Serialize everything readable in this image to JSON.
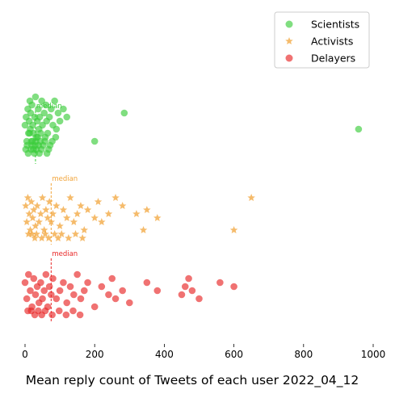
{
  "chart_data": {
    "type": "scatter",
    "xlabel": "Mean reply count of Tweets of each user 2022_04_12",
    "ylabel": "",
    "xlim": [
      0,
      1000
    ],
    "x_ticks": [
      "0",
      "200",
      "400",
      "600",
      "800",
      "1000"
    ],
    "y_ticks": [],
    "grid": false,
    "legend_position": "top-right",
    "series": [
      {
        "name": "Scientists",
        "marker": "circle",
        "color": "#3ccc3c",
        "median": 30,
        "median_label": "median",
        "x": [
          0,
          3,
          5,
          8,
          10,
          12,
          14,
          15,
          16,
          18,
          20,
          22,
          25,
          28,
          30,
          32,
          35,
          38,
          40,
          42,
          45,
          48,
          50,
          55,
          58,
          60,
          62,
          65,
          70,
          75,
          80,
          85,
          90,
          95,
          100,
          110,
          120,
          200,
          285,
          958,
          2,
          6,
          9,
          13,
          17,
          19,
          21,
          24,
          27,
          29,
          31,
          33,
          36,
          39,
          41,
          44,
          47,
          52,
          57,
          63,
          68,
          72,
          78,
          88
        ],
        "y": [
          2.4,
          2.5,
          2.2,
          2.6,
          2.3,
          2.45,
          2.7,
          2.35,
          2.55,
          2.2,
          2.65,
          2.4,
          2.3,
          2.5,
          2.75,
          2.25,
          2.45,
          2.6,
          2.35,
          2.5,
          2.3,
          2.7,
          2.4,
          2.55,
          2.25,
          2.65,
          2.45,
          2.3,
          2.5,
          2.6,
          2.4,
          2.7,
          2.35,
          2.55,
          2.45,
          2.6,
          2.5,
          2.2,
          2.55,
          2.35,
          2.1,
          2.15,
          2.05,
          2.3,
          2.1,
          2.15,
          2.2,
          2.1,
          2.05,
          2.15,
          2.2,
          2.1,
          2.25,
          2.15,
          2.05,
          2.2,
          2.1,
          2.15,
          2.2,
          2.05,
          2.1,
          2.15,
          2.2,
          2.25
        ]
      },
      {
        "name": "Activists",
        "marker": "star",
        "color": "#f2a43a",
        "median": 75,
        "median_label": "median",
        "x": [
          2,
          5,
          8,
          12,
          15,
          18,
          22,
          25,
          30,
          35,
          40,
          45,
          50,
          55,
          60,
          65,
          70,
          75,
          80,
          90,
          100,
          110,
          120,
          130,
          140,
          150,
          160,
          170,
          180,
          200,
          210,
          220,
          240,
          260,
          280,
          320,
          340,
          350,
          380,
          600,
          650,
          10,
          20,
          28,
          33,
          48,
          58,
          68,
          85,
          95,
          105,
          125,
          145,
          165
        ],
        "y": [
          1.4,
          1.2,
          1.5,
          1.3,
          1.1,
          1.45,
          1.25,
          1.35,
          1.15,
          1.4,
          1.2,
          1.3,
          1.5,
          1.1,
          1.35,
          1.25,
          1.45,
          1.2,
          1.3,
          1.4,
          1.15,
          1.35,
          1.25,
          1.5,
          1.2,
          1.3,
          1.4,
          1.1,
          1.35,
          1.25,
          1.45,
          1.2,
          1.3,
          1.5,
          1.4,
          1.3,
          1.1,
          1.35,
          1.25,
          1.1,
          1.5,
          1.05,
          1.05,
          1.0,
          1.05,
          1.0,
          1.05,
          1.0,
          1.05,
          1.0,
          1.05,
          1.0,
          1.05,
          1.0
        ]
      },
      {
        "name": "Delayers",
        "marker": "circle",
        "color": "#e82626",
        "median": 75,
        "median_label": "median",
        "x": [
          0,
          5,
          10,
          15,
          20,
          25,
          30,
          35,
          40,
          45,
          50,
          55,
          60,
          65,
          70,
          75,
          80,
          90,
          100,
          110,
          120,
          130,
          140,
          150,
          160,
          170,
          180,
          200,
          220,
          240,
          250,
          260,
          280,
          300,
          350,
          380,
          450,
          460,
          470,
          480,
          500,
          560,
          600,
          8,
          18,
          28,
          38,
          48,
          58,
          78,
          98,
          118,
          138,
          158
        ],
        "y": [
          0.4,
          0.2,
          0.5,
          0.3,
          0.1,
          0.45,
          0.25,
          0.35,
          0.15,
          0.4,
          0.2,
          0.3,
          0.5,
          0.1,
          0.35,
          0.25,
          0.45,
          0.2,
          0.3,
          0.4,
          0.15,
          0.35,
          0.25,
          0.5,
          0.2,
          0.3,
          0.4,
          0.1,
          0.35,
          0.25,
          0.45,
          0.2,
          0.3,
          0.15,
          0.4,
          0.3,
          0.25,
          0.35,
          0.45,
          0.3,
          0.2,
          0.4,
          0.35,
          0.05,
          0.05,
          0.0,
          0.05,
          0.0,
          0.05,
          0.0,
          0.05,
          0.0,
          0.05,
          0.0
        ]
      }
    ]
  }
}
